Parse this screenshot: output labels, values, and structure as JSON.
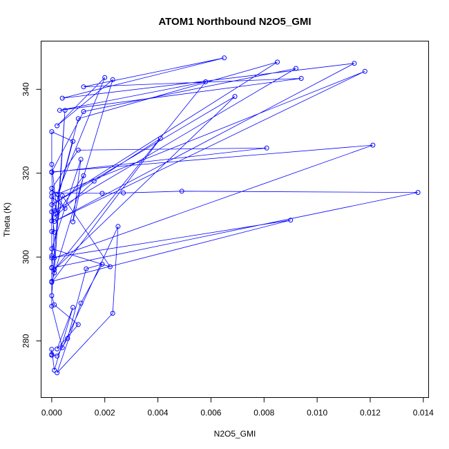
{
  "chart_data": {
    "type": "line",
    "title": "ATOM1 Northbound N2O5_GMI",
    "xlabel": "N2O5_GMI",
    "ylabel": "Theta (K)",
    "xlim": [
      -0.0004,
      0.0142
    ],
    "ylim": [
      266.5,
      351.5
    ],
    "xticks": [
      0,
      0.002,
      0.004,
      0.006,
      0.008,
      0.01,
      0.012,
      0.014
    ],
    "xtick_labels": [
      "0.000",
      "0.002",
      "0.004",
      "0.006",
      "0.008",
      "0.010",
      "0.012",
      "0.014"
    ],
    "yticks": [
      280,
      300,
      320,
      340
    ],
    "ytick_labels": [
      "280",
      "300",
      "320",
      "340"
    ],
    "grid": false,
    "color": "#0000ff",
    "series": [
      {
        "points": [
          [
            0.0,
            276.8
          ],
          [
            0.0002,
            276.4
          ],
          [
            0.0006,
            280.6
          ],
          [
            0.0013,
            297.2
          ],
          [
            0.0019,
            298.3
          ],
          [
            0.0011,
            289.0
          ],
          [
            0.0002,
            272.4
          ],
          [
            0.0023,
            286.6
          ],
          [
            0.0025,
            307.3
          ],
          [
            0.0004,
            278.4
          ],
          [
            0.0,
            288.3
          ],
          [
            0.0,
            297.5
          ],
          [
            0.0,
            294.2
          ],
          [
            0.009,
            308.8
          ],
          [
            0.0,
            299.8
          ],
          [
            0.0,
            306.1
          ],
          [
            0.0001,
            305.9
          ],
          [
            0.0,
            310.8
          ],
          [
            0.0,
            308.6
          ],
          [
            0.0008,
            327.6
          ],
          [
            0.0,
            329.9
          ],
          [
            0.0,
            322.1
          ],
          [
            0.0002,
            310.5
          ],
          [
            0.0,
            315.3
          ],
          [
            0.0019,
            315.2
          ],
          [
            0.0027,
            315.3
          ],
          [
            0.0049,
            315.7
          ],
          [
            0.0138,
            315.4
          ],
          [
            0.0,
            297.4
          ],
          [
            0.0,
            314.4
          ],
          [
            0.0005,
            311.6
          ],
          [
            0.0,
            316.4
          ],
          [
            0.001,
            325.5
          ],
          [
            0.0081,
            326.0
          ],
          [
            0.0,
            320.2
          ],
          [
            0.0001,
            299.8
          ],
          [
            0.0121,
            326.7
          ],
          [
            0.0,
            320.3
          ],
          [
            0.0012,
            334.7
          ],
          [
            0.0092,
            345.0
          ],
          [
            0.0001,
            311.0
          ],
          [
            0.001,
            333.0
          ],
          [
            0.0085,
            346.5
          ],
          [
            0.0,
            312.5
          ],
          [
            0.0069,
            338.3
          ],
          [
            0.0001,
            297.0
          ],
          [
            0.0058,
            341.8
          ],
          [
            0.0003,
            335.0
          ],
          [
            0.0094,
            342.6
          ],
          [
            0.0012,
            340.6
          ],
          [
            0.0065,
            347.5
          ],
          [
            0.0004,
            337.9
          ],
          [
            0.0114,
            346.2
          ],
          [
            0.0001,
            308.5
          ],
          [
            0.0118,
            344.3
          ],
          [
            0.0002,
            315.0
          ],
          [
            0.002,
            342.8
          ],
          [
            0.0002,
            331.3
          ],
          [
            0.0023,
            342.3
          ],
          [
            0.0,
            294.0
          ],
          [
            0.0041,
            328.3
          ],
          [
            0.0016,
            318.1
          ],
          [
            0.0001,
            309.5
          ],
          [
            0.0012,
            319.4
          ],
          [
            0.0008,
            308.4
          ],
          [
            0.0011,
            323.3
          ],
          [
            0.0,
            302.0
          ],
          [
            0.0022,
            297.7
          ],
          [
            0.0004,
            314.6
          ],
          [
            0.0,
            300.3
          ],
          [
            0.0001,
            296.2
          ],
          [
            0.0005,
            335.0
          ],
          [
            0.0,
            290.8
          ],
          [
            0.0001,
            288.6
          ],
          [
            0.001,
            283.9
          ],
          [
            0.0002,
            278.1
          ],
          [
            0.0008,
            288.0
          ],
          [
            0.0001,
            273.0
          ],
          [
            0.0,
            278.0
          ],
          [
            0.0,
            276.6
          ]
        ]
      }
    ]
  }
}
